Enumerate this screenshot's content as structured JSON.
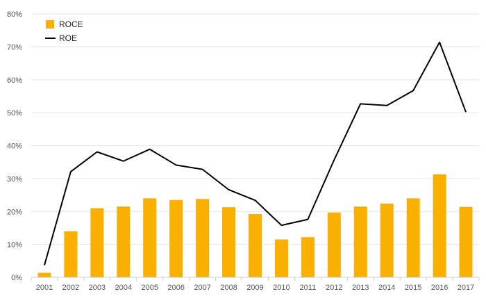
{
  "chart_data": {
    "type": "bar",
    "categories": [
      "2001",
      "2002",
      "2003",
      "2004",
      "2005",
      "2006",
      "2007",
      "2008",
      "2009",
      "2010",
      "2011",
      "2012",
      "2013",
      "2014",
      "2015",
      "2016",
      "2017"
    ],
    "series": [
      {
        "name": "ROCE",
        "type": "bar",
        "color": "#f9b000",
        "values": [
          1.4,
          14.0,
          21.0,
          21.5,
          24.0,
          23.5,
          23.8,
          21.3,
          19.2,
          11.5,
          12.2,
          19.7,
          21.5,
          22.4,
          24.0,
          31.3,
          21.4
        ]
      },
      {
        "name": "ROE",
        "type": "line",
        "color": "#000000",
        "values": [
          3.7,
          32.1,
          38.1,
          35.3,
          38.9,
          34.1,
          32.8,
          26.6,
          23.4,
          15.8,
          17.6,
          35.7,
          52.7,
          52.2,
          56.7,
          71.4,
          50.2
        ]
      }
    ],
    "yticks": [
      "0%",
      "10%",
      "20%",
      "30%",
      "40%",
      "50%",
      "60%",
      "70%",
      "80%"
    ],
    "ylim": [
      0,
      80
    ],
    "legend_position": "top-left",
    "grid": true
  }
}
